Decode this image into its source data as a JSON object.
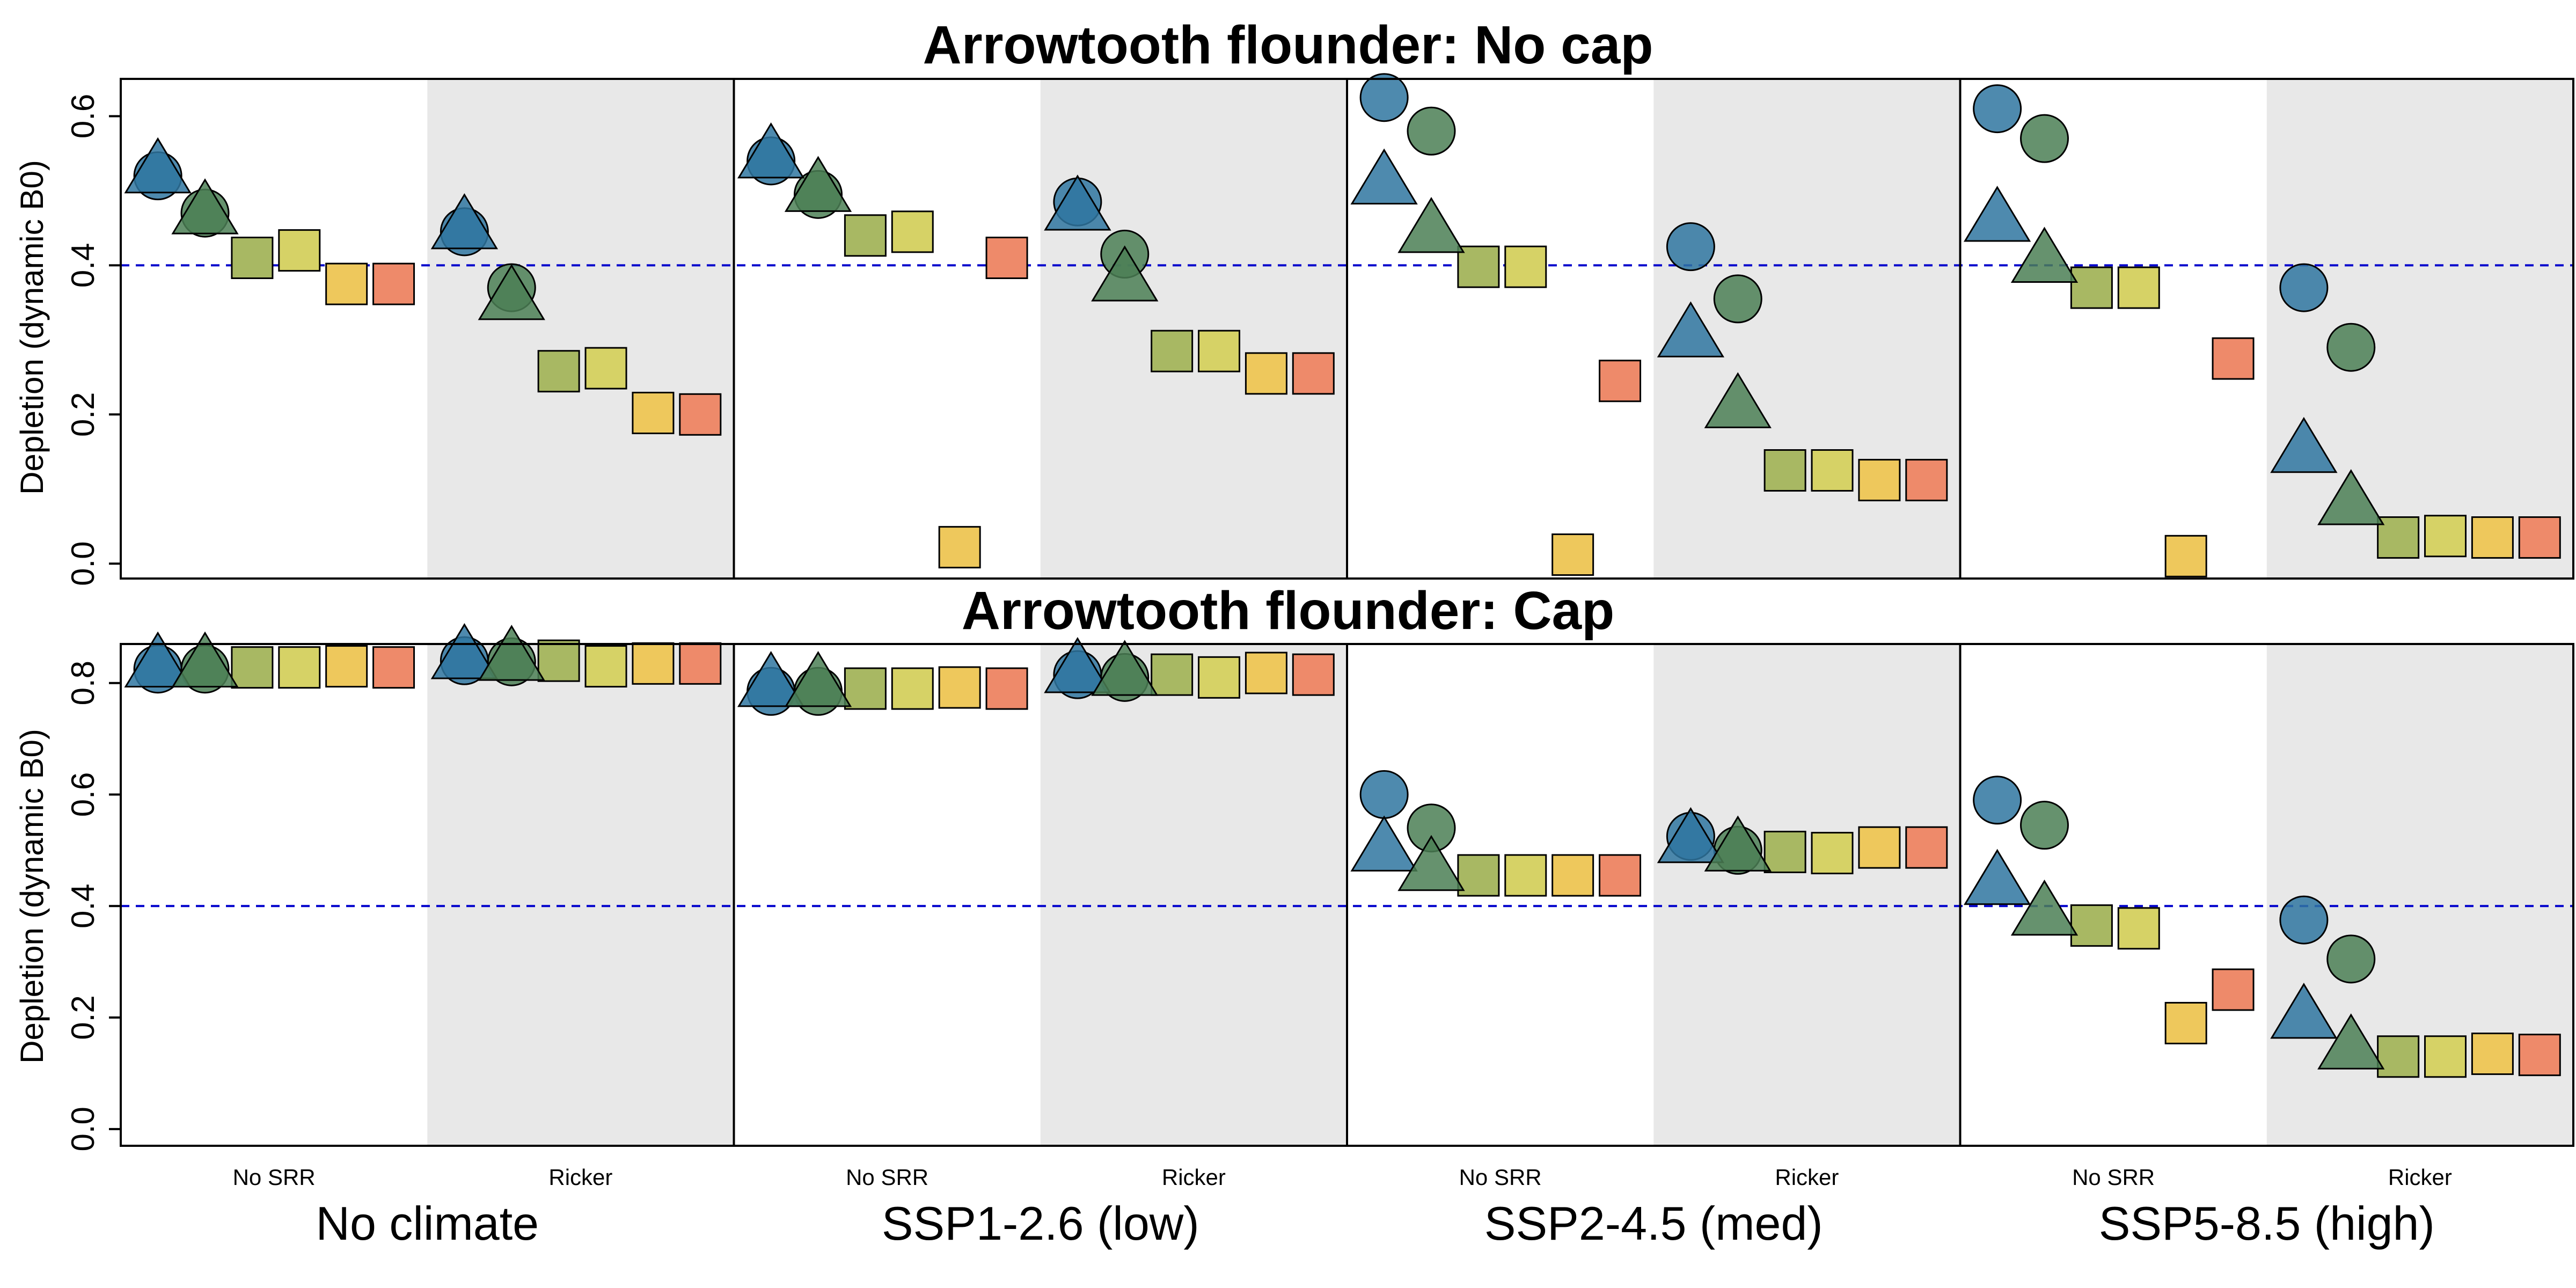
{
  "chart_data": {
    "type": "scatter",
    "y_axis_label": "Depletion (dynamic B0)",
    "y_ticks": [
      "0.0",
      "0.2",
      "0.4",
      "0.6",
      "0.8"
    ],
    "reference_line": {
      "value": 0.4,
      "color": "#0000cc",
      "style": "dashed"
    },
    "scenarios": [
      "No climate",
      "SSP1-2.6 (low)",
      "SSP2-4.5 (med)",
      "SSP5-8.5 (high)"
    ],
    "srr_groups": [
      "No SRR",
      "Ricker"
    ],
    "group_background": {
      "No SRR": "#ffffff",
      "Ricker": "#e8e8e8"
    },
    "marker_colors": [
      "#2f76a0",
      "#4b7f55",
      "#a8b863",
      "#d6d266",
      "#eec85c",
      "#ee8a6a"
    ],
    "panels": [
      {
        "title": "Arrowtooth flounder: No cap",
        "ylim": [
          -0.02,
          0.65
        ],
        "points": [
          {
            "slot": 0,
            "shape": "circle",
            "color": "#2f76a0",
            "y": 0.52
          },
          {
            "slot": 0,
            "shape": "triangle",
            "color": "#2f76a0",
            "y": 0.525
          },
          {
            "slot": 1,
            "shape": "circle",
            "color": "#4b7f55",
            "y": 0.47
          },
          {
            "slot": 1,
            "shape": "triangle",
            "color": "#4b7f55",
            "y": 0.47
          },
          {
            "slot": 2,
            "shape": "square",
            "color": "#a8b863",
            "y": 0.41
          },
          {
            "slot": 3,
            "shape": "square",
            "color": "#d6d266",
            "y": 0.42
          },
          {
            "slot": 4,
            "shape": "square",
            "color": "#eec85c",
            "y": 0.375
          },
          {
            "slot": 5,
            "shape": "square",
            "color": "#ee8a6a",
            "y": 0.375
          },
          {
            "slot": 6,
            "shape": "circle",
            "color": "#2f76a0",
            "y": 0.445
          },
          {
            "slot": 6,
            "shape": "triangle",
            "color": "#2f76a0",
            "y": 0.45
          },
          {
            "slot": 7,
            "shape": "circle",
            "color": "#4b7f55",
            "y": 0.37
          },
          {
            "slot": 7,
            "shape": "triangle",
            "color": "#4b7f55",
            "y": 0.355
          },
          {
            "slot": 8,
            "shape": "square",
            "color": "#a8b863",
            "y": 0.258
          },
          {
            "slot": 9,
            "shape": "square",
            "color": "#d6d266",
            "y": 0.262
          },
          {
            "slot": 10,
            "shape": "square",
            "color": "#eec85c",
            "y": 0.202
          },
          {
            "slot": 11,
            "shape": "square",
            "color": "#ee8a6a",
            "y": 0.2
          },
          {
            "slot": 12,
            "shape": "circle",
            "color": "#2f76a0",
            "y": 0.54
          },
          {
            "slot": 12,
            "shape": "triangle",
            "color": "#2f76a0",
            "y": 0.545
          },
          {
            "slot": 13,
            "shape": "circle",
            "color": "#4b7f55",
            "y": 0.495
          },
          {
            "slot": 13,
            "shape": "triangle",
            "color": "#4b7f55",
            "y": 0.5
          },
          {
            "slot": 14,
            "shape": "square",
            "color": "#a8b863",
            "y": 0.44
          },
          {
            "slot": 15,
            "shape": "square",
            "color": "#d6d266",
            "y": 0.445
          },
          {
            "slot": 16,
            "shape": "square",
            "color": "#eec85c",
            "y": 0.022
          },
          {
            "slot": 17,
            "shape": "square",
            "color": "#ee8a6a",
            "y": 0.41
          },
          {
            "slot": 18,
            "shape": "circle",
            "color": "#2f76a0",
            "y": 0.485
          },
          {
            "slot": 18,
            "shape": "triangle",
            "color": "#2f76a0",
            "y": 0.475
          },
          {
            "slot": 19,
            "shape": "circle",
            "color": "#4b7f55",
            "y": 0.415
          },
          {
            "slot": 19,
            "shape": "triangle",
            "color": "#4b7f55",
            "y": 0.38
          },
          {
            "slot": 20,
            "shape": "square",
            "color": "#a8b863",
            "y": 0.285
          },
          {
            "slot": 21,
            "shape": "square",
            "color": "#d6d266",
            "y": 0.285
          },
          {
            "slot": 22,
            "shape": "square",
            "color": "#eec85c",
            "y": 0.255
          },
          {
            "slot": 23,
            "shape": "square",
            "color": "#ee8a6a",
            "y": 0.255
          },
          {
            "slot": 24,
            "shape": "circle",
            "color": "#2f76a0",
            "y": 0.625
          },
          {
            "slot": 24,
            "shape": "triangle",
            "color": "#2f76a0",
            "y": 0.51
          },
          {
            "slot": 25,
            "shape": "circle",
            "color": "#4b7f55",
            "y": 0.58
          },
          {
            "slot": 25,
            "shape": "triangle",
            "color": "#4b7f55",
            "y": 0.445
          },
          {
            "slot": 26,
            "shape": "square",
            "color": "#a8b863",
            "y": 0.398
          },
          {
            "slot": 27,
            "shape": "square",
            "color": "#d6d266",
            "y": 0.398
          },
          {
            "slot": 28,
            "shape": "square",
            "color": "#eec85c",
            "y": 0.012
          },
          {
            "slot": 29,
            "shape": "square",
            "color": "#ee8a6a",
            "y": 0.245
          },
          {
            "slot": 30,
            "shape": "circle",
            "color": "#2f76a0",
            "y": 0.425
          },
          {
            "slot": 30,
            "shape": "triangle",
            "color": "#2f76a0",
            "y": 0.305
          },
          {
            "slot": 31,
            "shape": "circle",
            "color": "#4b7f55",
            "y": 0.355
          },
          {
            "slot": 31,
            "shape": "triangle",
            "color": "#4b7f55",
            "y": 0.21
          },
          {
            "slot": 32,
            "shape": "square",
            "color": "#a8b863",
            "y": 0.125
          },
          {
            "slot": 33,
            "shape": "square",
            "color": "#d6d266",
            "y": 0.125
          },
          {
            "slot": 34,
            "shape": "square",
            "color": "#eec85c",
            "y": 0.112
          },
          {
            "slot": 35,
            "shape": "square",
            "color": "#ee8a6a",
            "y": 0.112
          },
          {
            "slot": 36,
            "shape": "circle",
            "color": "#2f76a0",
            "y": 0.61
          },
          {
            "slot": 36,
            "shape": "triangle",
            "color": "#2f76a0",
            "y": 0.46
          },
          {
            "slot": 37,
            "shape": "circle",
            "color": "#4b7f55",
            "y": 0.57
          },
          {
            "slot": 37,
            "shape": "triangle",
            "color": "#4b7f55",
            "y": 0.405
          },
          {
            "slot": 38,
            "shape": "square",
            "color": "#a8b863",
            "y": 0.37
          },
          {
            "slot": 39,
            "shape": "square",
            "color": "#d6d266",
            "y": 0.37
          },
          {
            "slot": 40,
            "shape": "square",
            "color": "#eec85c",
            "y": 0.01
          },
          {
            "slot": 41,
            "shape": "square",
            "color": "#ee8a6a",
            "y": 0.275
          },
          {
            "slot": 42,
            "shape": "circle",
            "color": "#2f76a0",
            "y": 0.37
          },
          {
            "slot": 42,
            "shape": "triangle",
            "color": "#2f76a0",
            "y": 0.15
          },
          {
            "slot": 43,
            "shape": "circle",
            "color": "#4b7f55",
            "y": 0.29
          },
          {
            "slot": 43,
            "shape": "triangle",
            "color": "#4b7f55",
            "y": 0.08
          },
          {
            "slot": 44,
            "shape": "square",
            "color": "#a8b863",
            "y": 0.035
          },
          {
            "slot": 45,
            "shape": "square",
            "color": "#d6d266",
            "y": 0.037
          },
          {
            "slot": 46,
            "shape": "square",
            "color": "#eec85c",
            "y": 0.035
          },
          {
            "slot": 47,
            "shape": "square",
            "color": "#ee8a6a",
            "y": 0.035
          }
        ]
      },
      {
        "title": "Arrowtooth flounder: Cap",
        "ylim": [
          -0.03,
          0.87
        ],
        "points": [
          {
            "slot": 0,
            "shape": "circle",
            "color": "#2f76a0",
            "y": 0.825
          },
          {
            "slot": 0,
            "shape": "triangle",
            "color": "#2f76a0",
            "y": 0.83
          },
          {
            "slot": 1,
            "shape": "circle",
            "color": "#4b7f55",
            "y": 0.825
          },
          {
            "slot": 1,
            "shape": "triangle",
            "color": "#4b7f55",
            "y": 0.83
          },
          {
            "slot": 2,
            "shape": "square",
            "color": "#a8b863",
            "y": 0.828
          },
          {
            "slot": 3,
            "shape": "square",
            "color": "#d6d266",
            "y": 0.828
          },
          {
            "slot": 4,
            "shape": "square",
            "color": "#eec85c",
            "y": 0.83
          },
          {
            "slot": 5,
            "shape": "square",
            "color": "#ee8a6a",
            "y": 0.828
          },
          {
            "slot": 6,
            "shape": "circle",
            "color": "#2f76a0",
            "y": 0.84
          },
          {
            "slot": 6,
            "shape": "triangle",
            "color": "#2f76a0",
            "y": 0.845
          },
          {
            "slot": 7,
            "shape": "circle",
            "color": "#4b7f55",
            "y": 0.838
          },
          {
            "slot": 7,
            "shape": "triangle",
            "color": "#4b7f55",
            "y": 0.842
          },
          {
            "slot": 8,
            "shape": "square",
            "color": "#a8b863",
            "y": 0.84
          },
          {
            "slot": 9,
            "shape": "square",
            "color": "#d6d266",
            "y": 0.83
          },
          {
            "slot": 10,
            "shape": "square",
            "color": "#eec85c",
            "y": 0.835
          },
          {
            "slot": 11,
            "shape": "square",
            "color": "#ee8a6a",
            "y": 0.835
          },
          {
            "slot": 12,
            "shape": "circle",
            "color": "#2f76a0",
            "y": 0.785
          },
          {
            "slot": 12,
            "shape": "triangle",
            "color": "#2f76a0",
            "y": 0.795
          },
          {
            "slot": 13,
            "shape": "circle",
            "color": "#4b7f55",
            "y": 0.785
          },
          {
            "slot": 13,
            "shape": "triangle",
            "color": "#4b7f55",
            "y": 0.795
          },
          {
            "slot": 14,
            "shape": "square",
            "color": "#a8b863",
            "y": 0.79
          },
          {
            "slot": 15,
            "shape": "square",
            "color": "#d6d266",
            "y": 0.79
          },
          {
            "slot": 16,
            "shape": "square",
            "color": "#eec85c",
            "y": 0.792
          },
          {
            "slot": 17,
            "shape": "square",
            "color": "#ee8a6a",
            "y": 0.79
          },
          {
            "slot": 18,
            "shape": "circle",
            "color": "#2f76a0",
            "y": 0.815
          },
          {
            "slot": 18,
            "shape": "triangle",
            "color": "#2f76a0",
            "y": 0.82
          },
          {
            "slot": 19,
            "shape": "circle",
            "color": "#4b7f55",
            "y": 0.81
          },
          {
            "slot": 19,
            "shape": "triangle",
            "color": "#4b7f55",
            "y": 0.815
          },
          {
            "slot": 20,
            "shape": "square",
            "color": "#a8b863",
            "y": 0.815
          },
          {
            "slot": 21,
            "shape": "square",
            "color": "#d6d266",
            "y": 0.81
          },
          {
            "slot": 22,
            "shape": "square",
            "color": "#eec85c",
            "y": 0.818
          },
          {
            "slot": 23,
            "shape": "square",
            "color": "#ee8a6a",
            "y": 0.815
          },
          {
            "slot": 24,
            "shape": "circle",
            "color": "#2f76a0",
            "y": 0.6
          },
          {
            "slot": 24,
            "shape": "triangle",
            "color": "#2f76a0",
            "y": 0.5
          },
          {
            "slot": 25,
            "shape": "circle",
            "color": "#4b7f55",
            "y": 0.54
          },
          {
            "slot": 25,
            "shape": "triangle",
            "color": "#4b7f55",
            "y": 0.465
          },
          {
            "slot": 26,
            "shape": "square",
            "color": "#a8b863",
            "y": 0.455
          },
          {
            "slot": 27,
            "shape": "square",
            "color": "#d6d266",
            "y": 0.455
          },
          {
            "slot": 28,
            "shape": "square",
            "color": "#eec85c",
            "y": 0.455
          },
          {
            "slot": 29,
            "shape": "square",
            "color": "#ee8a6a",
            "y": 0.455
          },
          {
            "slot": 30,
            "shape": "circle",
            "color": "#2f76a0",
            "y": 0.525
          },
          {
            "slot": 30,
            "shape": "triangle",
            "color": "#2f76a0",
            "y": 0.515
          },
          {
            "slot": 31,
            "shape": "circle",
            "color": "#4b7f55",
            "y": 0.5
          },
          {
            "slot": 31,
            "shape": "triangle",
            "color": "#4b7f55",
            "y": 0.5
          },
          {
            "slot": 32,
            "shape": "square",
            "color": "#a8b863",
            "y": 0.497
          },
          {
            "slot": 33,
            "shape": "square",
            "color": "#d6d266",
            "y": 0.495
          },
          {
            "slot": 34,
            "shape": "square",
            "color": "#eec85c",
            "y": 0.505
          },
          {
            "slot": 35,
            "shape": "square",
            "color": "#ee8a6a",
            "y": 0.505
          },
          {
            "slot": 36,
            "shape": "circle",
            "color": "#2f76a0",
            "y": 0.59
          },
          {
            "slot": 36,
            "shape": "triangle",
            "color": "#2f76a0",
            "y": 0.44
          },
          {
            "slot": 37,
            "shape": "circle",
            "color": "#4b7f55",
            "y": 0.545
          },
          {
            "slot": 37,
            "shape": "triangle",
            "color": "#4b7f55",
            "y": 0.385
          },
          {
            "slot": 38,
            "shape": "square",
            "color": "#a8b863",
            "y": 0.365
          },
          {
            "slot": 39,
            "shape": "square",
            "color": "#d6d266",
            "y": 0.36
          },
          {
            "slot": 40,
            "shape": "square",
            "color": "#eec85c",
            "y": 0.19
          },
          {
            "slot": 41,
            "shape": "square",
            "color": "#ee8a6a",
            "y": 0.25
          },
          {
            "slot": 42,
            "shape": "circle",
            "color": "#2f76a0",
            "y": 0.375
          },
          {
            "slot": 42,
            "shape": "triangle",
            "color": "#2f76a0",
            "y": 0.2
          },
          {
            "slot": 43,
            "shape": "circle",
            "color": "#4b7f55",
            "y": 0.305
          },
          {
            "slot": 43,
            "shape": "triangle",
            "color": "#4b7f55",
            "y": 0.145
          },
          {
            "slot": 44,
            "shape": "square",
            "color": "#a8b863",
            "y": 0.13
          },
          {
            "slot": 45,
            "shape": "square",
            "color": "#d6d266",
            "y": 0.13
          },
          {
            "slot": 46,
            "shape": "square",
            "color": "#eec85c",
            "y": 0.135
          },
          {
            "slot": 47,
            "shape": "square",
            "color": "#ee8a6a",
            "y": 0.133
          }
        ]
      }
    ]
  }
}
